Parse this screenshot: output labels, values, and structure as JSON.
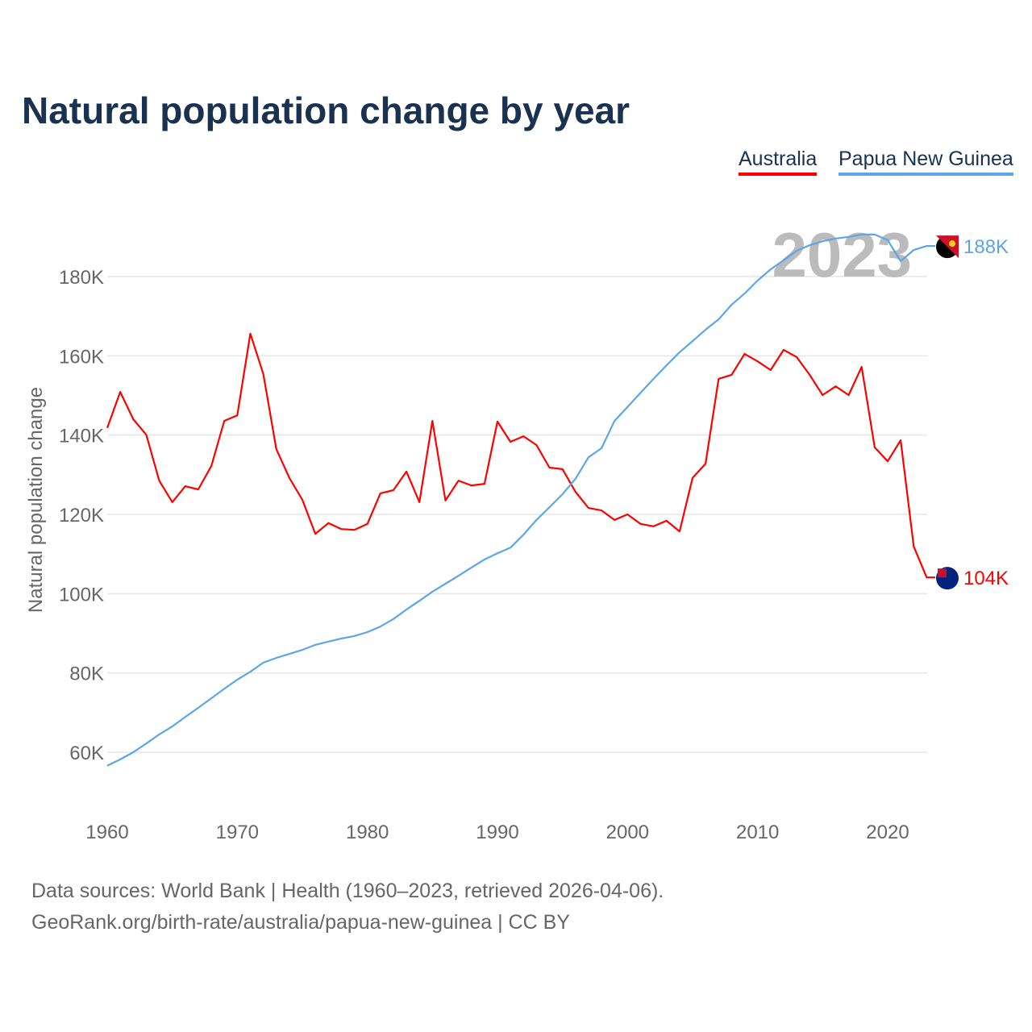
{
  "chart_data": {
    "type": "line",
    "title": "Natural population change by year",
    "ylabel": "Natural population change",
    "xlabel": "",
    "xlim": [
      1960,
      2023
    ],
    "ylim": [
      50000,
      195000
    ],
    "grid": true,
    "legend_position": "top-right",
    "x_ticks": [
      "1960",
      "1970",
      "1980",
      "1990",
      "2000",
      "2010",
      "2020"
    ],
    "y_ticks": [
      {
        "v": 60,
        "label": "60K"
      },
      {
        "v": 80,
        "label": "80K"
      },
      {
        "v": 100,
        "label": "100K"
      },
      {
        "v": 120,
        "label": "120K"
      },
      {
        "v": 140,
        "label": "140K"
      },
      {
        "v": 160,
        "label": "160K"
      },
      {
        "v": 180,
        "label": "180K"
      }
    ],
    "year_watermark": "2023",
    "x": [
      1960,
      1961,
      1962,
      1963,
      1964,
      1965,
      1966,
      1967,
      1968,
      1969,
      1970,
      1971,
      1972,
      1973,
      1974,
      1975,
      1976,
      1977,
      1978,
      1979,
      1980,
      1981,
      1982,
      1983,
      1984,
      1985,
      1986,
      1987,
      1988,
      1989,
      1990,
      1991,
      1992,
      1993,
      1994,
      1995,
      1996,
      1997,
      1998,
      1999,
      2000,
      2001,
      2002,
      2003,
      2004,
      2005,
      2006,
      2007,
      2008,
      2009,
      2010,
      2011,
      2012,
      2013,
      2014,
      2015,
      2016,
      2017,
      2018,
      2019,
      2020,
      2021,
      2022,
      2023
    ],
    "series": [
      {
        "name": "Australia",
        "color": "#ff0000",
        "end_label": "104K",
        "flag": "australia-flag-icon",
        "values": [
          141.8,
          150.9,
          144.0,
          140.1,
          128.5,
          123.1,
          127.1,
          126.3,
          132.2,
          143.6,
          145.0,
          165.6,
          155.4,
          136.5,
          129.2,
          123.7,
          115.1,
          117.8,
          116.3,
          116.1,
          117.6,
          125.3,
          126.1,
          130.8,
          123.1,
          143.6,
          123.5,
          128.5,
          127.3,
          127.7,
          143.4,
          138.3,
          139.7,
          137.5,
          131.8,
          131.4,
          125.7,
          121.6,
          121.0,
          118.6,
          120.0,
          117.6,
          117.0,
          118.4,
          115.7,
          129.2,
          132.8,
          154.2,
          155.2,
          160.5,
          158.6,
          156.4,
          161.5,
          159.7,
          155.2,
          150.1,
          152.3,
          150.1,
          157.2,
          136.9,
          133.4,
          138.7,
          111.9,
          104.1
        ]
      },
      {
        "name": "Papua New Guinea",
        "color": "#5ea5e8",
        "end_label": "188K",
        "flag": "png-flag-icon",
        "values": [
          56.6,
          58.2,
          60.0,
          62.2,
          64.5,
          66.5,
          68.9,
          71.2,
          73.6,
          76.0,
          78.3,
          80.3,
          82.6,
          83.8,
          84.8,
          85.8,
          87.1,
          87.9,
          88.7,
          89.3,
          90.3,
          91.7,
          93.6,
          96.0,
          98.2,
          100.5,
          102.5,
          104.5,
          106.6,
          108.6,
          110.2,
          111.6,
          114.9,
          118.6,
          121.8,
          125.1,
          129.0,
          134.4,
          136.7,
          143.6,
          147.1,
          150.7,
          154.2,
          157.6,
          160.9,
          163.7,
          166.6,
          169.2,
          172.9,
          175.7,
          179.0,
          181.8,
          184.1,
          186.5,
          187.9,
          188.9,
          189.6,
          190.0,
          190.6,
          190.6,
          189.2,
          183.9,
          186.7,
          187.7
        ]
      }
    ],
    "value_unit": "thousands"
  },
  "footer": {
    "line1": "Data sources: World Bank | Health (1960–2023, retrieved 2026-04-06).",
    "line2": "GeoRank.org/birth-rate/australia/papua-new-guinea | CC BY"
  }
}
